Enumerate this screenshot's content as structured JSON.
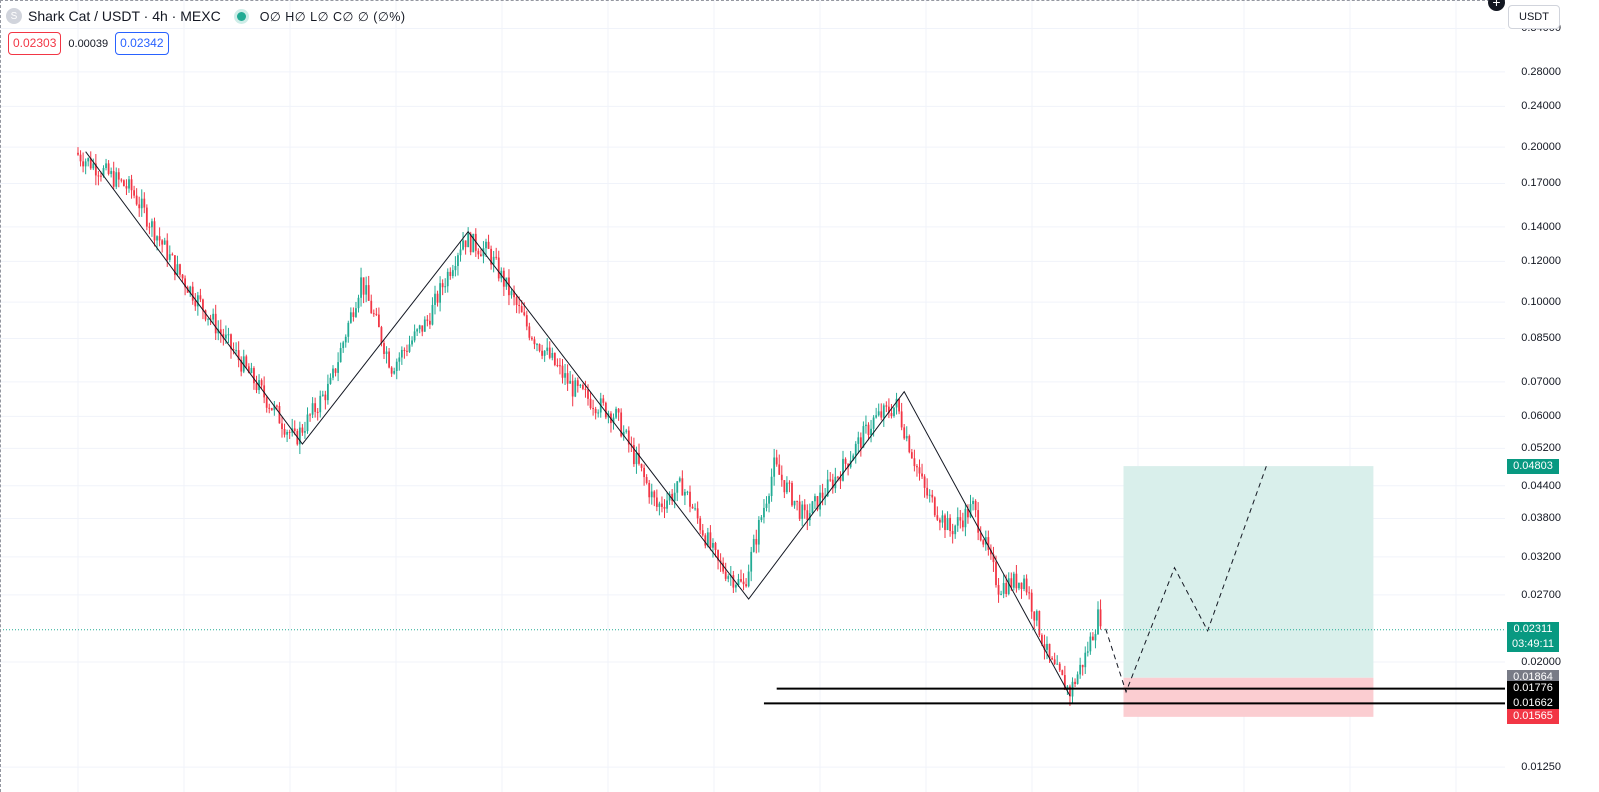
{
  "header": {
    "symbol_icon": "S",
    "title": "Shark Cat / USDT · 4h · MEXC",
    "ohlc": "O∅ H∅ L∅ C∅ ∅ (∅%)",
    "bid": "0.02303",
    "spread": "0.00039",
    "ask": "0.02342",
    "currency": "USDT"
  },
  "colors": {
    "up": "#22ab94",
    "down": "#f23645",
    "profit_zone": "#d9efeb",
    "loss_zone": "#fbcdd1",
    "grid": "#f0f3fa",
    "current_price_line": "#22ab94"
  },
  "icons": {
    "symbol": "shark-cat-coin-icon",
    "live": "live-status-dot-icon",
    "add": "plus-circle-icon"
  },
  "chart_data": {
    "type": "candlestick",
    "title": "Shark Cat / USDT · 4h · MEXC",
    "y_scale": "log",
    "ylim": [
      0.0118,
      0.35
    ],
    "grid": true,
    "y_ticks": [
      "0.34000",
      "0.28000",
      "0.24000",
      "0.20000",
      "0.17000",
      "0.14000",
      "0.12000",
      "0.10000",
      "0.08500",
      "0.07000",
      "0.06000",
      "0.05200",
      "0.04400",
      "0.03800",
      "0.03200",
      "0.02700",
      "0.02000",
      "0.01250"
    ],
    "price_path": [
      {
        "bar": 0,
        "price": 0.195
      },
      {
        "bar": 22,
        "price": 0.165
      },
      {
        "bar": 40,
        "price": 0.115
      },
      {
        "bar": 55,
        "price": 0.09
      },
      {
        "bar": 72,
        "price": 0.068
      },
      {
        "bar": 86,
        "price": 0.054
      },
      {
        "bar": 100,
        "price": 0.069
      },
      {
        "bar": 112,
        "price": 0.11
      },
      {
        "bar": 124,
        "price": 0.075
      },
      {
        "bar": 138,
        "price": 0.092
      },
      {
        "bar": 152,
        "price": 0.133
      },
      {
        "bar": 162,
        "price": 0.125
      },
      {
        "bar": 178,
        "price": 0.088
      },
      {
        "bar": 195,
        "price": 0.068
      },
      {
        "bar": 212,
        "price": 0.06
      },
      {
        "bar": 228,
        "price": 0.04
      },
      {
        "bar": 238,
        "price": 0.044
      },
      {
        "bar": 252,
        "price": 0.031
      },
      {
        "bar": 262,
        "price": 0.028
      },
      {
        "bar": 274,
        "price": 0.048
      },
      {
        "bar": 286,
        "price": 0.038
      },
      {
        "bar": 300,
        "price": 0.047
      },
      {
        "bar": 313,
        "price": 0.059
      },
      {
        "bar": 322,
        "price": 0.063
      },
      {
        "bar": 333,
        "price": 0.043
      },
      {
        "bar": 343,
        "price": 0.036
      },
      {
        "bar": 352,
        "price": 0.04
      },
      {
        "bar": 362,
        "price": 0.028
      },
      {
        "bar": 372,
        "price": 0.029
      },
      {
        "bar": 382,
        "price": 0.02
      },
      {
        "bar": 390,
        "price": 0.0175
      },
      {
        "bar": 396,
        "price": 0.0205
      },
      {
        "bar": 401,
        "price": 0.0245
      }
    ],
    "bar_count": 402,
    "zigzag": [
      {
        "bar": 3,
        "price": 0.196
      },
      {
        "bar": 88,
        "price": 0.053
      },
      {
        "bar": 153,
        "price": 0.137
      },
      {
        "bar": 263,
        "price": 0.0265
      },
      {
        "bar": 324,
        "price": 0.067
      },
      {
        "bar": 389,
        "price": 0.0172
      }
    ],
    "projection": [
      {
        "bar": 403,
        "price": 0.0232
      },
      {
        "bar": 411,
        "price": 0.0175
      },
      {
        "bar": 430,
        "price": 0.0305
      },
      {
        "bar": 443,
        "price": 0.023
      },
      {
        "bar": 466,
        "price": 0.048
      }
    ],
    "long_position": {
      "start_bar": 410,
      "end_bar": 508,
      "entry": 0.01864,
      "target": 0.04803,
      "stop": 0.01565
    },
    "horizontal_lines": [
      {
        "price": 0.01776,
        "from_bar": 274
      },
      {
        "price": 0.01662,
        "from_bar": 269
      }
    ],
    "current_price": {
      "value": "0.02311",
      "countdown": "03:49:11"
    },
    "axis_labels": {
      "target": "0.04803",
      "entry": "0.01864",
      "line1": "0.01776",
      "line2": "0.01662",
      "stop": "0.01565"
    }
  }
}
